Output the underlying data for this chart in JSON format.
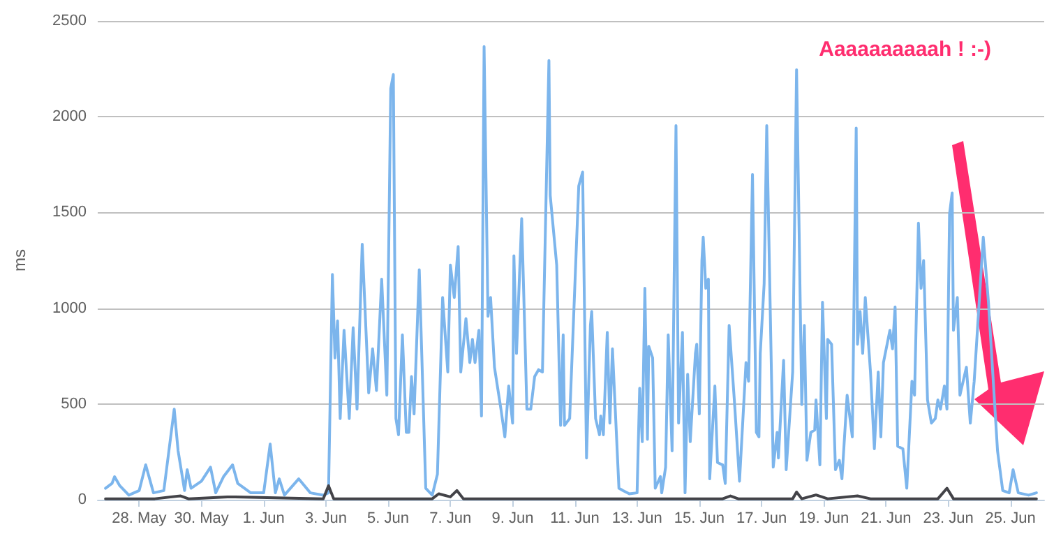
{
  "chart_data": {
    "type": "line",
    "ylabel": "ms",
    "annotations": [
      "Aaaaaaaaaah ! :-)"
    ],
    "xlim": [
      "--05-26T16:00",
      "--06-26T02:00"
    ],
    "xticks": [
      {
        "value": "--05-28",
        "label": "28. May"
      },
      {
        "value": "--05-30",
        "label": "30. May"
      },
      {
        "value": "--06-01",
        "label": "1. Jun"
      },
      {
        "value": "--06-03",
        "label": "3. Jun"
      },
      {
        "value": "--06-05",
        "label": "5. Jun"
      },
      {
        "value": "--06-07",
        "label": "7. Jun"
      },
      {
        "value": "--06-09",
        "label": "9. Jun"
      },
      {
        "value": "--06-11",
        "label": "11. Jun"
      },
      {
        "value": "--06-13",
        "label": "13. Jun"
      },
      {
        "value": "--06-15",
        "label": "15. Jun"
      },
      {
        "value": "--06-17",
        "label": "17. Jun"
      },
      {
        "value": "--06-19",
        "label": "19. Jun"
      },
      {
        "value": "--06-21",
        "label": "21. Jun"
      },
      {
        "value": "--06-23",
        "label": "23. Jun"
      },
      {
        "value": "--06-25",
        "label": "25. Jun"
      }
    ],
    "ylim": [
      0,
      2500
    ],
    "yticks": [
      0,
      500,
      1000,
      1500,
      2000,
      2500
    ],
    "grid": "y",
    "marker": "none",
    "line_style": "solid",
    "series": [
      {
        "color": "#7cb5ec",
        "x": [
          "--05-26T22:00",
          "--05-27T03:00",
          "--05-27T05:00",
          "--05-27T09:00",
          "--05-27T16:00",
          "--05-28T00:00",
          "--05-28T05:00",
          "--05-28T11:00",
          "--05-28T19:00",
          "--05-29T03:00",
          "--05-29T06:00",
          "--05-29T11:00",
          "--05-29T13:00",
          "--05-29T16:00",
          "--05-30T00:00",
          "--05-30T07:00",
          "--05-30T11:00",
          "--05-30T17:00",
          "--05-31T00:00",
          "--05-31T04:00",
          "--05-31T14:00",
          "--06-01T00:00",
          "--06-01T05:00",
          "--06-01T09:00",
          "--06-01T12:00",
          "--06-01T16:00",
          "--06-02T03:00",
          "--06-02T12:00",
          "--06-02T22:00",
          "--06-03T02:00",
          "--06-03T05:00",
          "--06-03T07:00",
          "--06-03T09:00",
          "--06-03T11:00",
          "--06-03T14:00",
          "--06-03T18:00",
          "--06-03T21:00",
          "--06-04T00:00",
          "--06-04T04:00",
          "--06-04T09:00",
          "--06-04T12:00",
          "--06-04T15:00",
          "--06-04T19:00",
          "--06-04T23:00",
          "--06-05T02:00",
          "--06-05T04:00",
          "--06-05T06:00",
          "--06-05T08:00",
          "--06-05T11:00",
          "--06-05T14:00",
          "--06-05T16:00",
          "--06-05T18:00",
          "--06-05T20:00",
          "--06-06T00:00",
          "--06-06T05:00",
          "--06-06T10:00",
          "--06-06T14:00",
          "--06-06T18:00",
          "--06-06T22:00",
          "--06-07T00:00",
          "--06-07T03:00",
          "--06-07T06:00",
          "--06-07T08:00",
          "--06-07T12:00",
          "--06-07T15:00",
          "--06-07T17:00",
          "--06-07T19:00",
          "--06-07T22:00",
          "--06-08T00:00",
          "--06-08T02:00",
          "--06-08T05:00",
          "--06-08T07:00",
          "--06-08T10:00",
          "--06-08T15:00",
          "--06-08T18:00",
          "--06-08T21:00",
          "--06-09T00:00",
          "--06-09T01:00",
          "--06-09T03:00",
          "--06-09T07:00",
          "--06-09T11:00",
          "--06-09T14:00",
          "--06-09T17:00",
          "--06-09T20:00",
          "--06-09T23:00",
          "--06-10T04:00",
          "--06-10T05:00",
          "--06-10T10:00",
          "--06-10T13:00",
          "--06-10T15:00",
          "--06-10T16:00",
          "--06-10T20:00",
          "--06-11T03:00",
          "--06-11T06:00",
          "--06-11T09:00",
          "--06-11T12:00",
          "--06-11T13:00",
          "--06-11T16:00",
          "--06-11T19:00",
          "--06-11T20:00",
          "--06-11T22:00",
          "--06-12T01:00",
          "--06-12T03:00",
          "--06-12T05:00",
          "--06-12T10:00",
          "--06-12T13:00",
          "--06-12T18:00",
          "--06-13T00:00",
          "--06-13T02:00",
          "--06-13T04:00",
          "--06-13T06:00",
          "--06-13T08:00",
          "--06-13T09:00",
          "--06-13T12:00",
          "--06-13T14:00",
          "--06-13T18:00",
          "--06-13T19:00",
          "--06-13T22:00",
          "--06-14T00:00",
          "--06-14T03:00",
          "--06-14T06:00",
          "--06-14T08:00",
          "--06-14T11:00",
          "--06-14T13:00",
          "--06-14T15:00",
          "--06-14T17:00",
          "--06-14T21:00",
          "--06-14T22:00",
          "--06-15T00:00",
          "--06-15T02:00",
          "--06-15T03:00",
          "--06-15T05:00",
          "--06-15T07:00",
          "--06-15T08:00",
          "--06-15T12:00",
          "--06-15T14:00",
          "--06-15T18:00",
          "--06-15T20:00",
          "--06-15T23:00",
          "--06-16T03:00",
          "--06-16T07:00",
          "--06-16T12:00",
          "--06-16T14:00",
          "--06-16T17:00",
          "--06-16T20:00",
          "--06-16T22:00",
          "--06-16T23:00",
          "--06-17T02:00",
          "--06-17T04:00",
          "--06-17T09:00",
          "--06-17T12:00",
          "--06-17T13:00",
          "--06-17T17:00",
          "--06-17T19:00",
          "--06-18T00:00",
          "--06-18T03:00",
          "--06-18T05:00",
          "--06-18T07:00",
          "--06-18T09:00",
          "--06-18T11:00",
          "--06-18T14:00",
          "--06-18T17:00",
          "--06-18T18:00",
          "--06-18T21:00",
          "--06-18T23:00",
          "--06-19T02:00",
          "--06-19T03:00",
          "--06-19T06:00",
          "--06-19T09:00",
          "--06-19T12:00",
          "--06-19T14:00",
          "--06-19T18:00",
          "--06-19T22:00",
          "--06-20T01:00",
          "--06-20T02:00",
          "--06-20T04:00",
          "--06-20T06:00",
          "--06-20T08:00",
          "--06-20T12:00",
          "--06-20T15:00",
          "--06-20T18:00",
          "--06-20T20:00",
          "--06-20T22:00",
          "--06-21T03:00",
          "--06-21T05:00",
          "--06-21T07:00",
          "--06-21T09:00",
          "--06-21T13:00",
          "--06-21T16:00",
          "--06-21T20:00",
          "--06-21T22:00",
          "--06-22T01:00",
          "--06-22T03:00",
          "--06-22T05:00",
          "--06-22T08:00",
          "--06-22T11:00",
          "--06-22T14:00",
          "--06-22T16:00",
          "--06-22T18:00",
          "--06-22T21:00",
          "--06-22T23:00",
          "--06-23T01:00",
          "--06-23T03:00",
          "--06-23T04:00",
          "--06-23T07:00",
          "--06-23T09:00",
          "--06-23T14:00",
          "--06-23T17:00",
          "--06-23T20:00",
          "--06-24T03:00",
          "--06-24T07:00",
          "--06-24T14:00",
          "--06-24T18:00",
          "--06-24T23:00",
          "--06-25T02:00",
          "--06-25T06:00",
          "--06-25T14:00",
          "--06-25T20:00"
        ],
        "values": [
          60,
          85,
          120,
          73,
          24,
          48,
          182,
          36,
          48,
          473,
          255,
          48,
          157,
          60,
          97,
          170,
          36,
          120,
          182,
          85,
          36,
          36,
          291,
          36,
          109,
          24,
          109,
          36,
          24,
          36,
          1176,
          740,
          934,
          424,
          885,
          424,
          898,
          473,
          1334,
          558,
          788,
          570,
          1152,
          546,
          2147,
          2220,
          424,
          339,
          861,
          352,
          352,
          643,
          448,
          1201,
          60,
          24,
          133,
          1056,
          667,
          1225,
          1056,
          1322,
          667,
          946,
          716,
          837,
          716,
          885,
          437,
          2366,
          958,
          1056,
          692,
          473,
          328,
          594,
          400,
          1274,
          764,
          1468,
          473,
          473,
          643,
          679,
          667,
          2293,
          1589,
          1225,
          388,
          861,
          388,
          424,
          1638,
          1711,
          218,
          910,
          983,
          424,
          339,
          437,
          339,
          874,
          400,
          788,
          60,
          48,
          31,
          36,
          582,
          303,
          1104,
          315,
          801,
          740,
          60,
          121,
          36,
          170,
          861,
          255,
          1953,
          400,
          874,
          36,
          655,
          303,
          764,
          812,
          448,
          1249,
          1371,
          1104,
          1152,
          109,
          594,
          194,
          182,
          85,
          910,
          521,
          97,
          716,
          619,
          1698,
          352,
          328,
          764,
          1128,
          1953,
          170,
          352,
          218,
          728,
          157,
          667,
          2245,
          1395,
          497,
          910,
          206,
          352,
          364,
          521,
          182,
          1031,
          424,
          837,
          812,
          157,
          206,
          109,
          546,
          328,
          1941,
          812,
          983,
          764,
          1056,
          667,
          266,
          667,
          328,
          716,
          885,
          788,
          1007,
          279,
          266,
          60,
          619,
          546,
          1444,
          1104,
          1249,
          521,
          400,
          424,
          521,
          473,
          594,
          473,
          1492,
          1602,
          885,
          1056,
          546,
          692,
          400,
          619,
          1371,
          1031,
          255,
          48,
          36,
          157,
          36,
          24,
          36
        ]
      },
      {
        "color": "#434348",
        "x": [
          "--05-26T22:00",
          "--05-28T12:00",
          "--05-29T08:00",
          "--05-29T14:00",
          "--05-30T20:00",
          "--05-31T02:00",
          "--06-02T22:00",
          "--06-03T02:00",
          "--06-03T06:00",
          "--06-06T10:00",
          "--06-06T15:00",
          "--06-07T00:00",
          "--06-07T05:00",
          "--06-07T10:00",
          "--06-15T18:00",
          "--06-16T00:00",
          "--06-16T06:00",
          "--06-18T00:00",
          "--06-18T03:00",
          "--06-18T07:00",
          "--06-18T18:00",
          "--06-19T03:00",
          "--06-20T02:00",
          "--06-20T12:00",
          "--06-22T16:00",
          "--06-22T23:00",
          "--06-23T04:00",
          "--06-25T20:00"
        ],
        "values": [
          5,
          5,
          20,
          5,
          15,
          15,
          5,
          73,
          5,
          5,
          31,
          15,
          48,
          5,
          5,
          20,
          5,
          5,
          40,
          5,
          25,
          5,
          20,
          5,
          5,
          60,
          5,
          5
        ]
      }
    ]
  }
}
